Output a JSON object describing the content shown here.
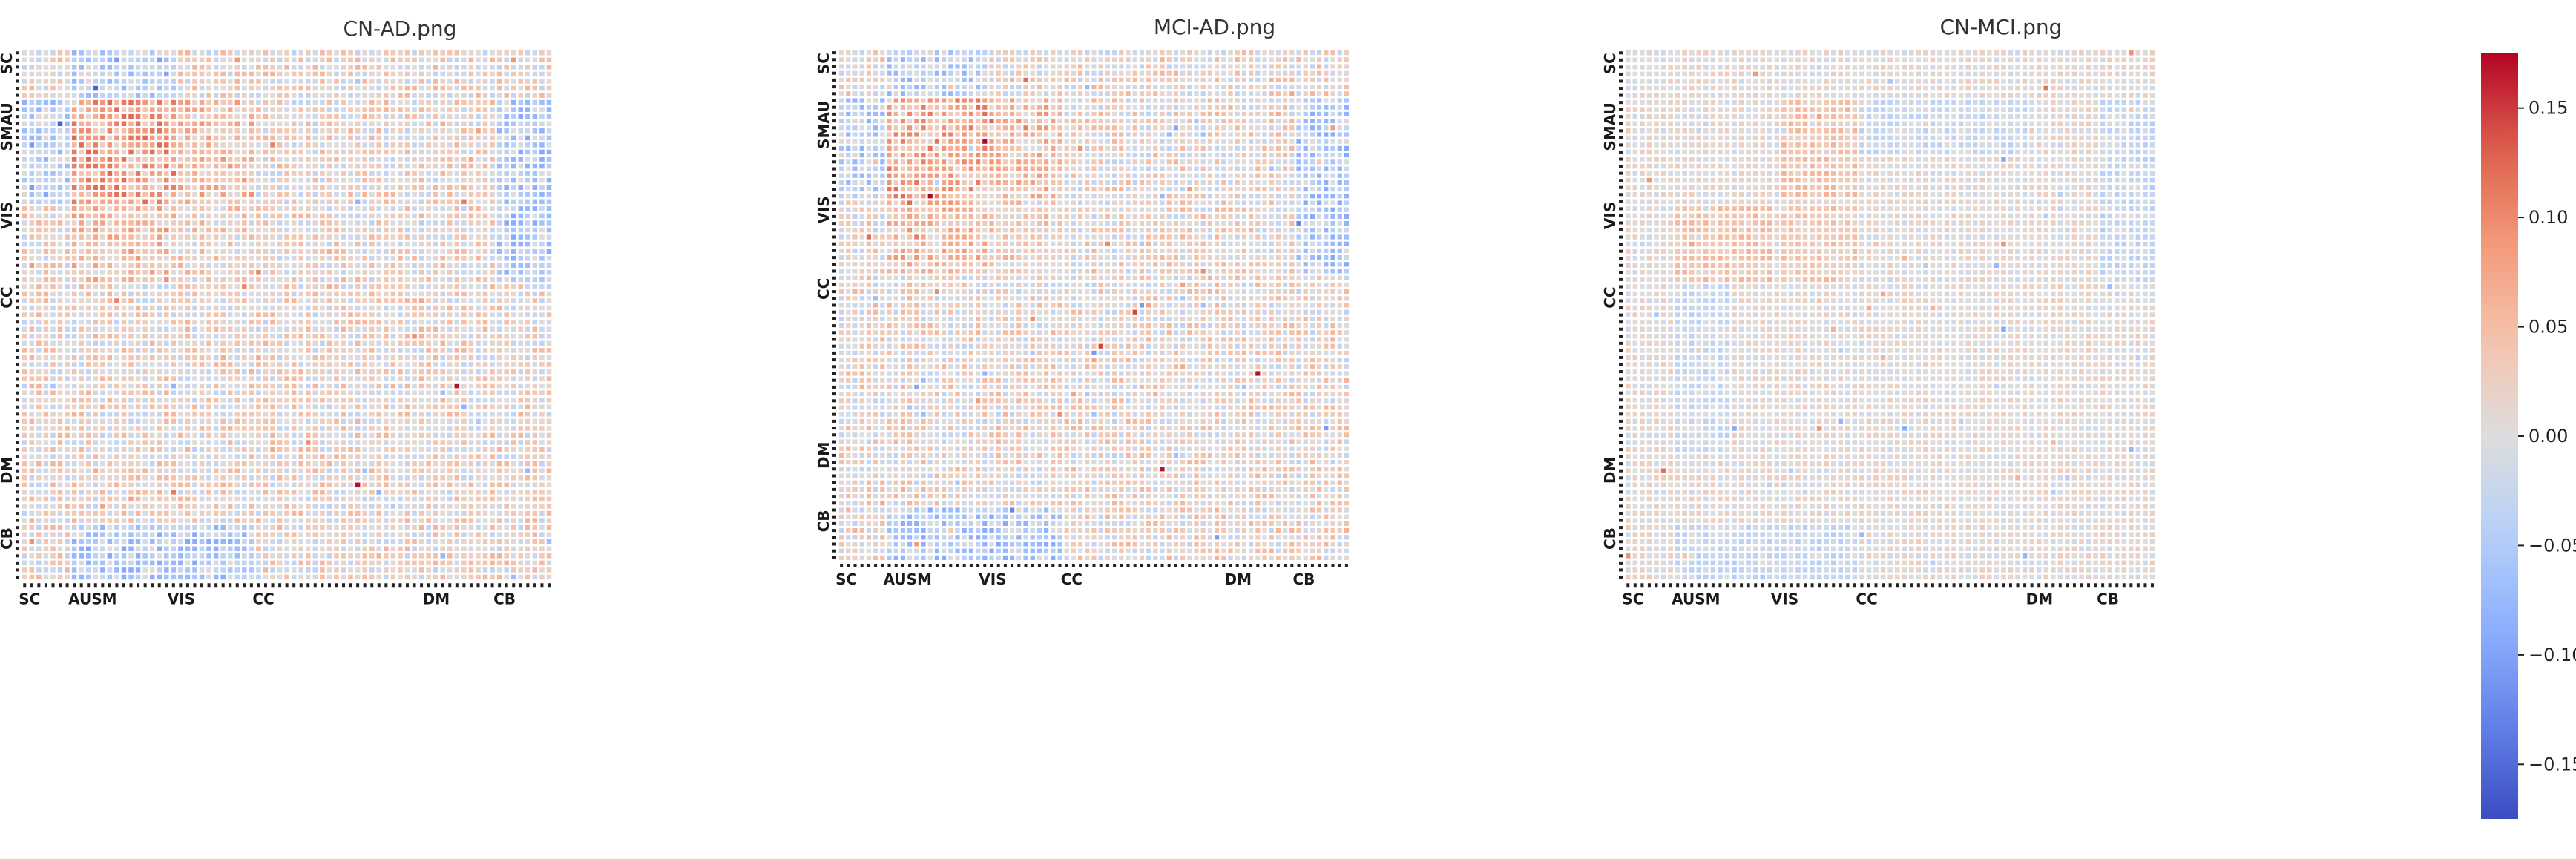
{
  "chart_data": [
    {
      "type": "heatmap",
      "title": "CN-AD.png",
      "n": 75,
      "pattern": "cnad",
      "seed": 11,
      "y_groups": [
        {
          "label": "SC",
          "index": 0
        },
        {
          "label": "SMAU",
          "index": 7
        },
        {
          "label": "VIS",
          "index": 21
        },
        {
          "label": "CC",
          "index": 33
        },
        {
          "label": "DM",
          "index": 57
        },
        {
          "label": "CB",
          "index": 67
        }
      ],
      "x_groups": [
        {
          "label": "SC",
          "index": 0
        },
        {
          "label": "AUSM",
          "index": 7
        },
        {
          "label": "VIS",
          "index": 21
        },
        {
          "label": "CC",
          "index": 33
        },
        {
          "label": "DM",
          "index": 57
        },
        {
          "label": "CB",
          "index": 67
        }
      ]
    },
    {
      "type": "heatmap",
      "title": "MCI-AD.png",
      "n": 75,
      "pattern": "mciad",
      "seed": 23,
      "y_groups": [
        {
          "label": "SC",
          "index": 0
        },
        {
          "label": "SMAU",
          "index": 7
        },
        {
          "label": "VIS",
          "index": 21
        },
        {
          "label": "CC",
          "index": 33
        },
        {
          "label": "DM",
          "index": 57
        },
        {
          "label": "CB",
          "index": 67
        }
      ],
      "x_groups": [
        {
          "label": "SC",
          "index": 0
        },
        {
          "label": "AUSM",
          "index": 7
        },
        {
          "label": "VIS",
          "index": 21
        },
        {
          "label": "CC",
          "index": 33
        },
        {
          "label": "DM",
          "index": 57
        },
        {
          "label": "CB",
          "index": 67
        }
      ]
    },
    {
      "type": "heatmap",
      "title": "CN-MCI.png",
      "n": 75,
      "pattern": "cnmci",
      "seed": 37,
      "y_groups": [
        {
          "label": "SC",
          "index": 0
        },
        {
          "label": "SMAU",
          "index": 7
        },
        {
          "label": "VIS",
          "index": 21
        },
        {
          "label": "CC",
          "index": 33
        },
        {
          "label": "DM",
          "index": 57
        },
        {
          "label": "CB",
          "index": 67
        }
      ],
      "x_groups": [
        {
          "label": "SC",
          "index": 0
        },
        {
          "label": "AUSM",
          "index": 7
        },
        {
          "label": "VIS",
          "index": 21
        },
        {
          "label": "CC",
          "index": 33
        },
        {
          "label": "DM",
          "index": 57
        },
        {
          "label": "CB",
          "index": 67
        }
      ]
    }
  ],
  "colorbar": {
    "colormap": "coolwarm",
    "vmin": -0.175,
    "vmax": 0.175,
    "ticks": [
      {
        "value": 0.15,
        "label": "0.15"
      },
      {
        "value": 0.1,
        "label": "0.10"
      },
      {
        "value": 0.05,
        "label": "0.05"
      },
      {
        "value": 0.0,
        "label": "0.00"
      },
      {
        "value": -0.05,
        "label": "−0.05"
      },
      {
        "value": -0.1,
        "label": "−0.10"
      },
      {
        "value": -0.15,
        "label": "−0.15"
      }
    ]
  }
}
